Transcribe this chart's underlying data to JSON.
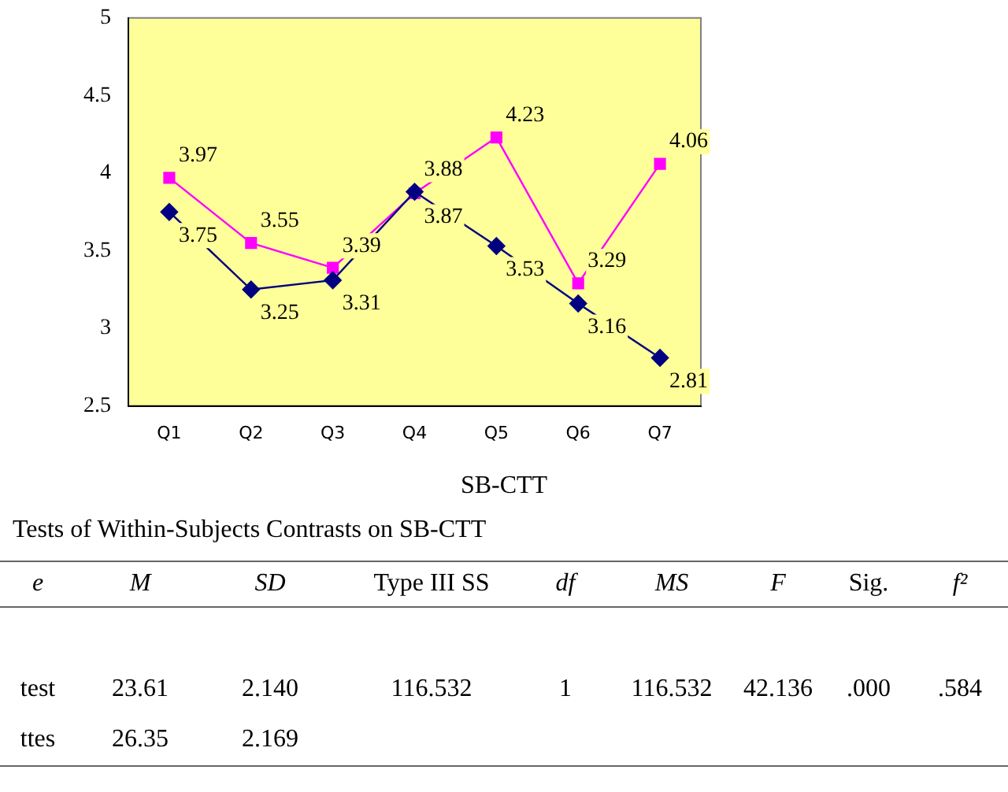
{
  "chart_data": {
    "type": "line",
    "categories": [
      "Q1",
      "Q2",
      "Q3",
      "Q4",
      "Q5",
      "Q6",
      "Q7"
    ],
    "series": [
      {
        "color": "#000080",
        "marker": "diamond",
        "values": [
          3.75,
          3.25,
          3.31,
          3.88,
          3.53,
          3.16,
          2.81
        ]
      },
      {
        "color": "#ff00ff",
        "marker": "square",
        "values": [
          3.97,
          3.55,
          3.39,
          3.87,
          4.23,
          3.29,
          4.06
        ]
      }
    ],
    "ylim": [
      2.5,
      5
    ],
    "yticks": [
      2.5,
      3,
      3.5,
      4,
      4.5,
      5
    ],
    "data_labels": true,
    "grid": false,
    "annotations": [
      "SB-CTT",
      "Tests of Within-Subjects Contrasts on SB-CTT",
      "e",
      "M",
      "SD",
      "Type III SS",
      "df",
      "MS",
      "F",
      "Sig.",
      "f²",
      "test",
      "23.61",
      "2.140",
      "116.532",
      "1",
      "116.532",
      "42.136",
      ".000",
      ".584",
      "ttes",
      "26.35",
      "2.169"
    ]
  }
}
